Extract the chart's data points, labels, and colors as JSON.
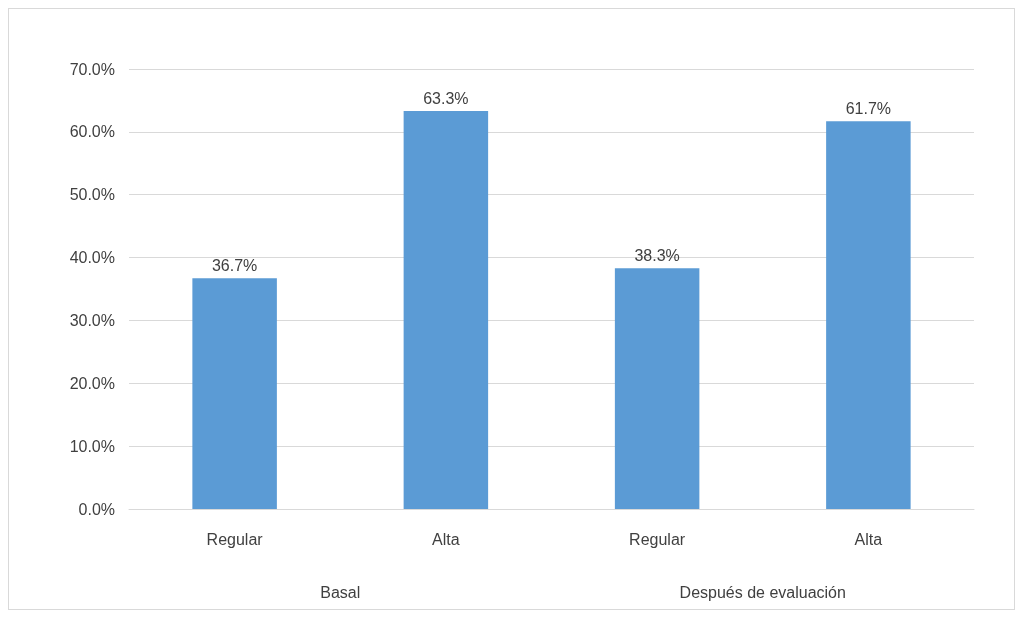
{
  "chart_data": {
    "type": "bar",
    "categories": [
      "Regular",
      "Alta",
      "Regular",
      "Alta"
    ],
    "values": [
      36.7,
      63.3,
      38.3,
      61.7
    ],
    "value_labels": [
      "36.7%",
      "63.3%",
      "38.3%",
      "61.7%"
    ],
    "color": "#5b9bd5",
    "ylim": [
      0,
      70
    ],
    "yticks": [
      {
        "value": 0,
        "label": "0.0%"
      },
      {
        "value": 10,
        "label": "10.0%"
      },
      {
        "value": 20,
        "label": "20.0%"
      },
      {
        "value": 30,
        "label": "30.0%"
      },
      {
        "value": 40,
        "label": "40.0%"
      },
      {
        "value": 50,
        "label": "50.0%"
      },
      {
        "value": 60,
        "label": "60.0%"
      },
      {
        "value": 70,
        "label": "70.0%"
      }
    ],
    "annotations": [
      "Basal",
      "Después de evaluación"
    ],
    "grid": "y"
  }
}
